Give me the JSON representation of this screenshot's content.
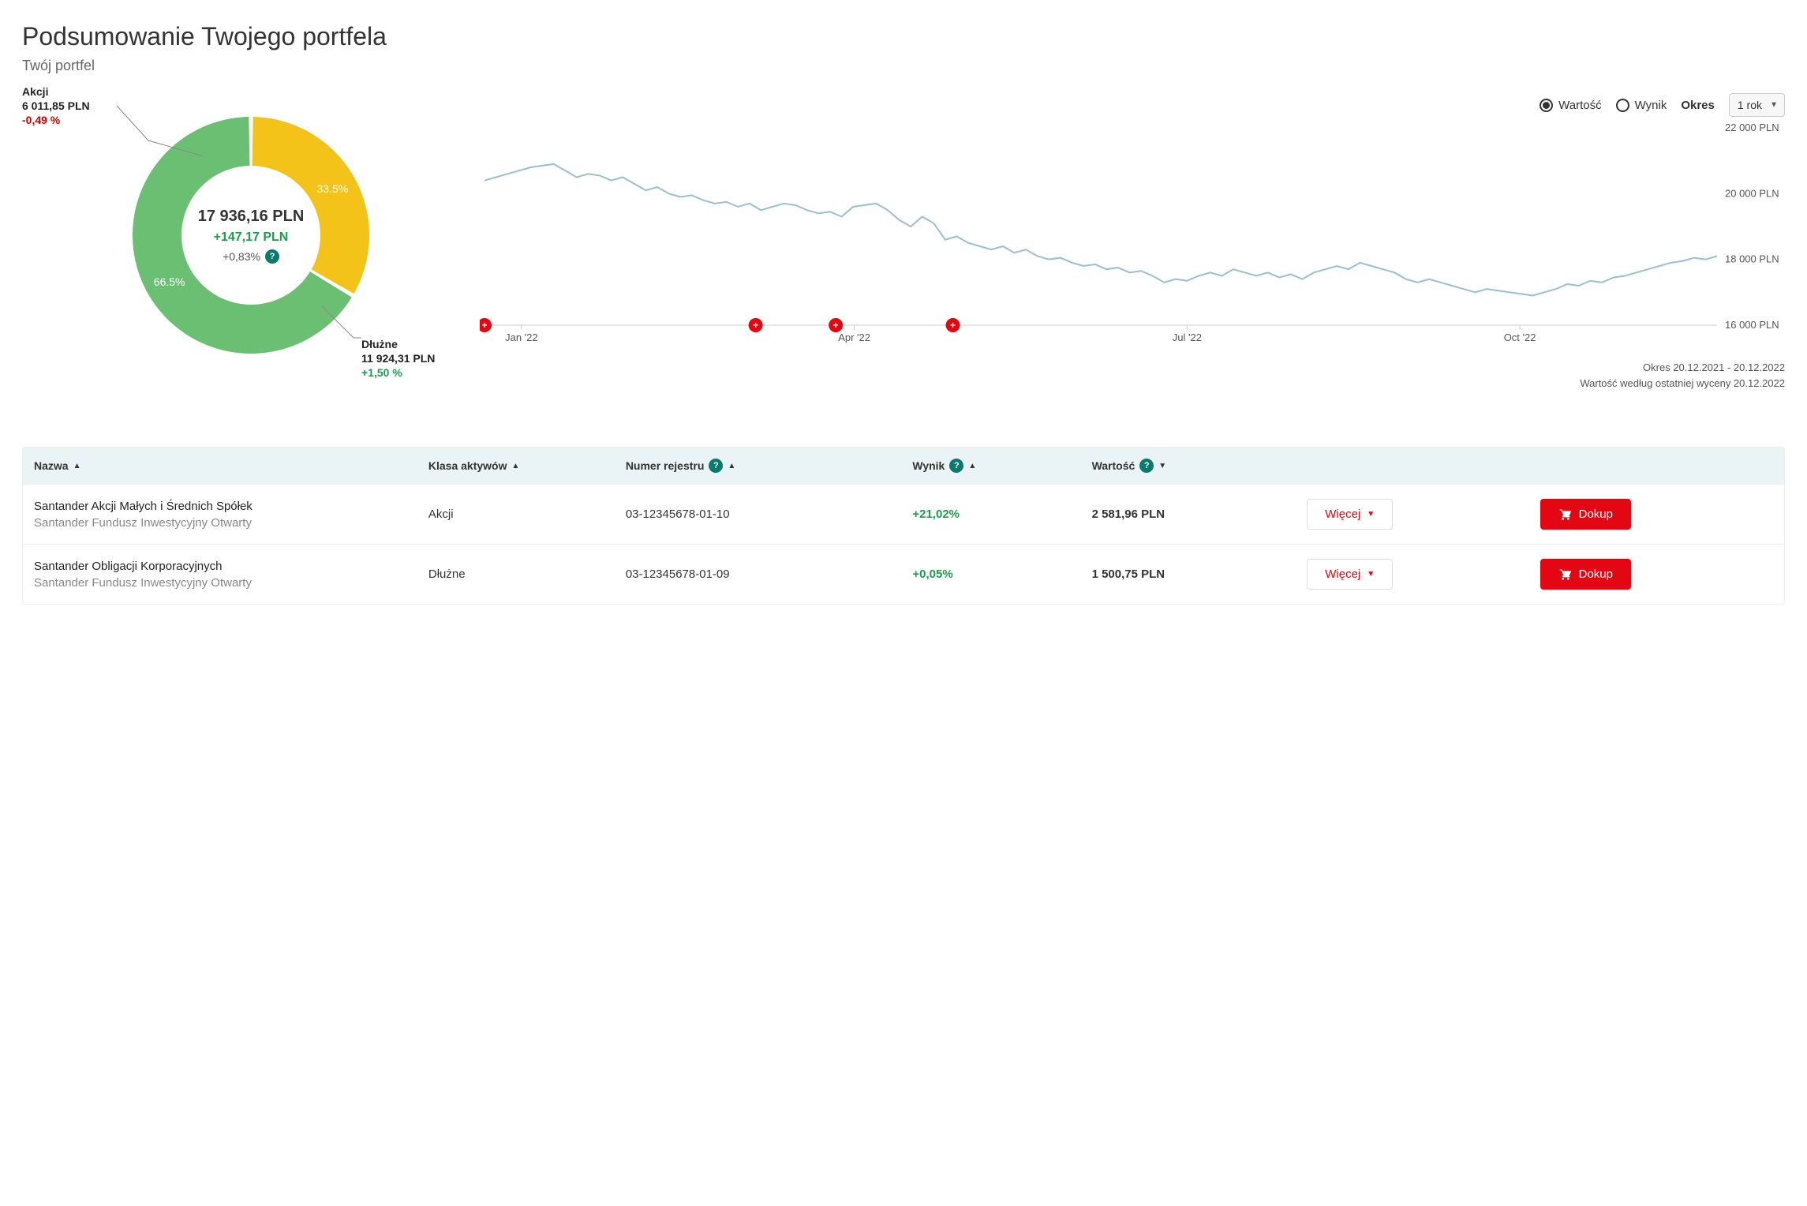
{
  "header": {
    "title": "Podsumowanie Twojego portfela",
    "subtitle": "Twój portfel"
  },
  "colors": {
    "positive": "#1a9e4b",
    "negative": "#d40000",
    "accent": "#e30613",
    "teal": "#0a7a6e",
    "line": "#9abfd0",
    "grid": "#eeeeee",
    "tableHeadBg": "#eaf3f5"
  },
  "donut": {
    "total_label": "17 936,16 PLN",
    "change_amount": "+147,17 PLN",
    "change_pct": "+0,83%",
    "help_glyph": "?",
    "slices": [
      {
        "key": "akcji",
        "name": "Akcji",
        "value_label": "6 011,85 PLN",
        "pct_label": "-0,49 %",
        "pct_positive": false,
        "share": 33.5,
        "share_label": "33.5%",
        "color": "#f3c31a"
      },
      {
        "key": "dluzne",
        "name": "Dłużne",
        "value_label": "11 924,31 PLN",
        "pct_label": "+1,50 %",
        "pct_positive": true,
        "share": 66.5,
        "share_label": "66.5%",
        "color": "#6bbf73"
      }
    ],
    "inner_radius": 88,
    "outer_radius": 150,
    "start_angle_deg": -90
  },
  "lineChart": {
    "controls": {
      "radio_value": "Wartość",
      "radio_result": "Wynik",
      "radio_selected": "value",
      "period_label": "Okres",
      "period_selected": "1 rok"
    },
    "y_axis": {
      "min": 16000,
      "max": 22000,
      "step": 2000,
      "tick_labels": [
        "16 000 PLN",
        "18 000 PLN",
        "20 000 PLN",
        "22 000 PLN"
      ]
    },
    "x_axis": {
      "tick_labels": [
        "Jan '22",
        "Apr '22",
        "Jul '22",
        "Oct '22"
      ],
      "tick_positions": [
        0.03,
        0.3,
        0.57,
        0.84
      ]
    },
    "series": [
      20400,
      20500,
      20600,
      20700,
      20800,
      20850,
      20900,
      20700,
      20500,
      20600,
      20550,
      20400,
      20500,
      20300,
      20100,
      20200,
      20000,
      19900,
      19950,
      19800,
      19700,
      19750,
      19600,
      19700,
      19500,
      19600,
      19700,
      19650,
      19500,
      19400,
      19450,
      19300,
      19600,
      19650,
      19700,
      19500,
      19200,
      19000,
      19300,
      19100,
      18600,
      18700,
      18500,
      18400,
      18300,
      18400,
      18200,
      18300,
      18100,
      18000,
      18050,
      17900,
      17800,
      17850,
      17700,
      17750,
      17600,
      17650,
      17500,
      17300,
      17400,
      17350,
      17500,
      17600,
      17500,
      17700,
      17600,
      17500,
      17600,
      17450,
      17550,
      17400,
      17600,
      17700,
      17800,
      17700,
      17900,
      17800,
      17700,
      17600,
      17400,
      17300,
      17400,
      17300,
      17200,
      17100,
      17000,
      17100,
      17050,
      17000,
      16950,
      16900,
      17000,
      17100,
      17250,
      17200,
      17350,
      17300,
      17450,
      17500,
      17600,
      17700,
      17800,
      17900,
      17950,
      18050,
      18000,
      18100
    ],
    "markers_x": [
      0.0,
      0.22,
      0.285,
      0.38
    ],
    "footer_line1": "Okres 20.12.2021 - 20.12.2022",
    "footer_line2": "Wartość według ostatniej wyceny 20.12.2022"
  },
  "table": {
    "columns": {
      "name": {
        "label": "Nazwa",
        "sort": "asc"
      },
      "klass": {
        "label": "Klasa aktywów",
        "sort": "asc"
      },
      "reg": {
        "label": "Numer rejestru",
        "sort": "asc",
        "help": true
      },
      "wynik": {
        "label": "Wynik",
        "sort": "asc",
        "help": true
      },
      "wart": {
        "label": "Wartość",
        "sort": "desc",
        "help": true
      }
    },
    "more_label": "Więcej",
    "buy_label": "Dokup",
    "rows": [
      {
        "name_primary": "Santander Akcji Małych i Średnich Spółek",
        "name_secondary": "Santander Fundusz Inwestycyjny Otwarty",
        "klass": "Akcji",
        "reg": "03-12345678-01-10",
        "wynik": "+21,02%",
        "wynik_positive": true,
        "wart": "2 581,96 PLN"
      },
      {
        "name_primary": "Santander Obligacji Korporacyjnych",
        "name_secondary": "Santander Fundusz Inwestycyjny Otwarty",
        "klass": "Dłużne",
        "reg": "03-12345678-01-09",
        "wynik": "+0,05%",
        "wynik_positive": true,
        "wart": "1 500,75 PLN"
      }
    ]
  }
}
